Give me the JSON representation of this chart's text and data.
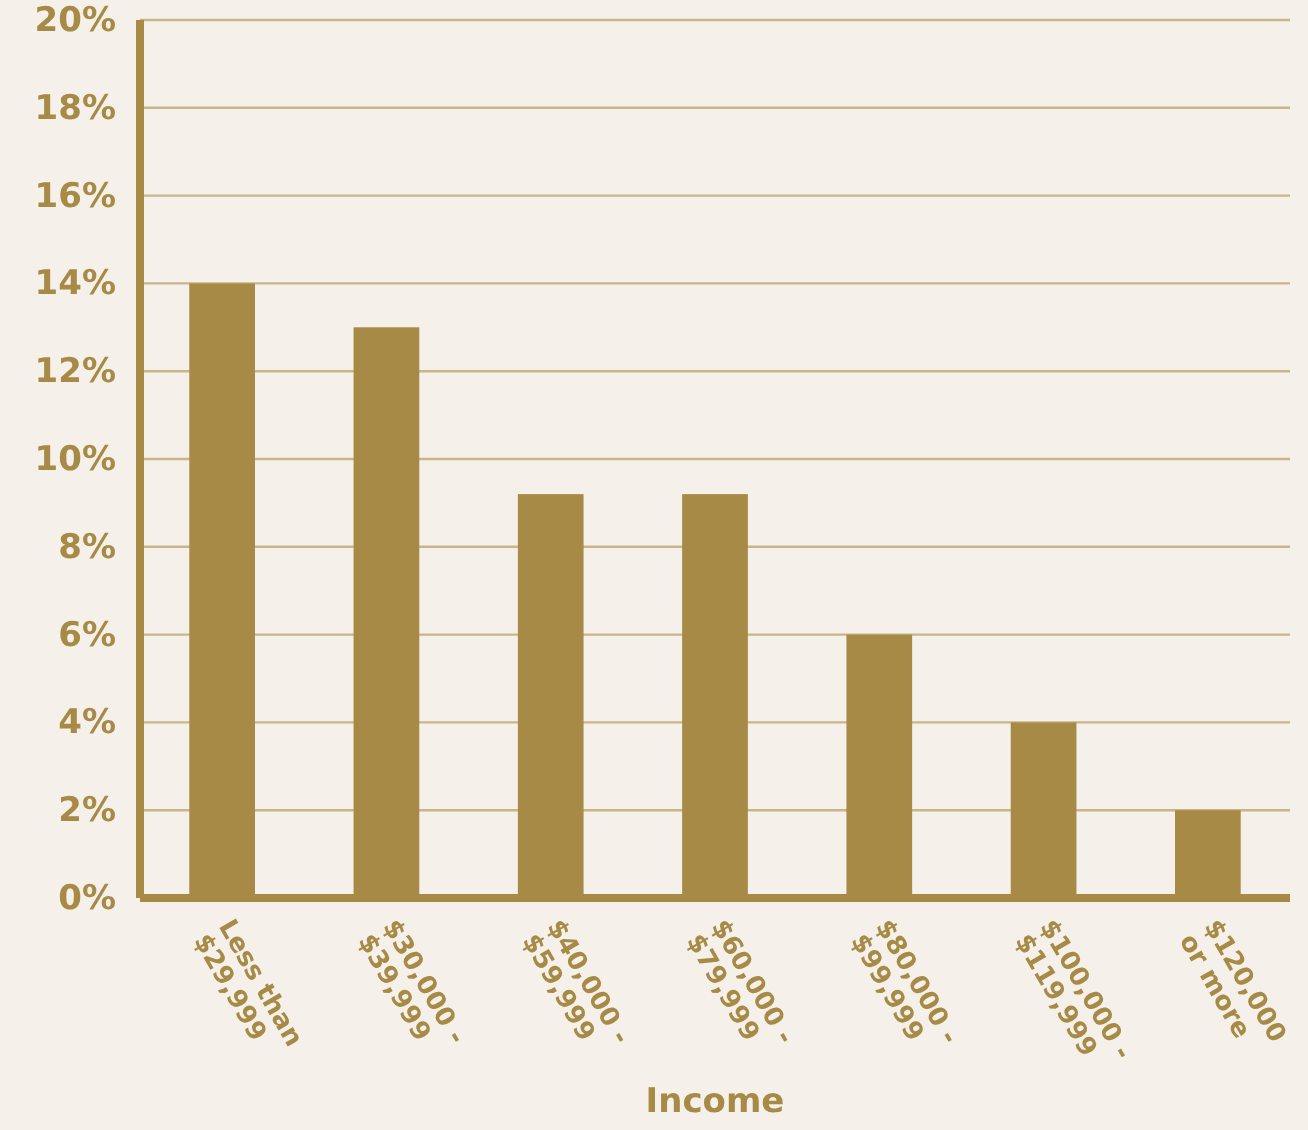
{
  "chart_data": {
    "type": "bar",
    "xlabel": "Income",
    "categories": [
      "Less than\n$29,999",
      "$30,000 -\n$39,999",
      "$40,000 -\n$59,999",
      "$60,000 -\n$79,999",
      "$80,000 -\n$99,999",
      "$100,000 -\n$119,999",
      "$120,000\nor more"
    ],
    "values": [
      14,
      13,
      9.2,
      9.2,
      6,
      4,
      2
    ],
    "color": "#a68a46",
    "ylim": [
      0,
      20
    ],
    "yticks": [
      {
        "value": 0,
        "label": "0%"
      },
      {
        "value": 2,
        "label": "2%"
      },
      {
        "value": 4,
        "label": "4%"
      },
      {
        "value": 6,
        "label": "6%"
      },
      {
        "value": 8,
        "label": "8%"
      },
      {
        "value": 10,
        "label": "10%"
      },
      {
        "value": 12,
        "label": "12%"
      },
      {
        "value": 14,
        "label": "14%"
      },
      {
        "value": 16,
        "label": "16%"
      },
      {
        "value": 18,
        "label": "18%"
      },
      {
        "value": 20,
        "label": "20%"
      }
    ],
    "grid": "y"
  }
}
